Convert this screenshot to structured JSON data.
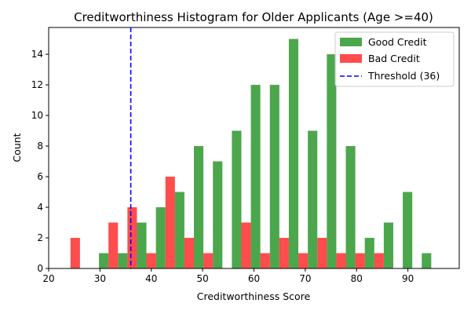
{
  "chart_data": {
    "type": "bar",
    "title": "Creditworthiness Histogram for Older Applicants (Age >=40)",
    "xlabel": "Creditworthiness Score",
    "ylabel": "Count",
    "xlim": [
      20,
      100
    ],
    "ylim": [
      0,
      15.75
    ],
    "xticks": [
      20,
      30,
      40,
      50,
      60,
      70,
      80,
      90
    ],
    "yticks": [
      0,
      2,
      4,
      6,
      8,
      10,
      12,
      14
    ],
    "bin_edges": [
      22.4,
      26.1,
      29.8,
      33.5,
      37.2,
      40.9,
      44.6,
      48.3,
      52.0,
      55.7,
      59.4,
      63.1,
      66.8,
      70.5,
      74.2,
      77.9,
      81.6,
      85.3,
      89.0,
      92.7,
      96.4
    ],
    "series": [
      {
        "name": "Good Credit",
        "color": "#008000",
        "opacity": 0.7,
        "values": [
          0,
          0,
          1,
          1,
          3,
          4,
          5,
          8,
          7,
          9,
          12,
          12,
          15,
          9,
          14,
          8,
          2,
          3,
          5,
          1
        ]
      },
      {
        "name": "Bad Credit",
        "color": "#ff0000",
        "opacity": 0.7,
        "values": [
          2,
          0,
          3,
          4,
          1,
          6,
          2,
          1,
          0,
          3,
          1,
          2,
          1,
          2,
          1,
          1,
          1,
          0,
          0,
          0
        ]
      }
    ],
    "threshold": {
      "name": "Threshold (36)",
      "value": 36,
      "color": "#0000ff",
      "style": "dashed"
    },
    "legend": {
      "position": "top-right",
      "entries": [
        "Good Credit",
        "Bad Credit",
        "Threshold (36)"
      ]
    },
    "grid": false
  }
}
